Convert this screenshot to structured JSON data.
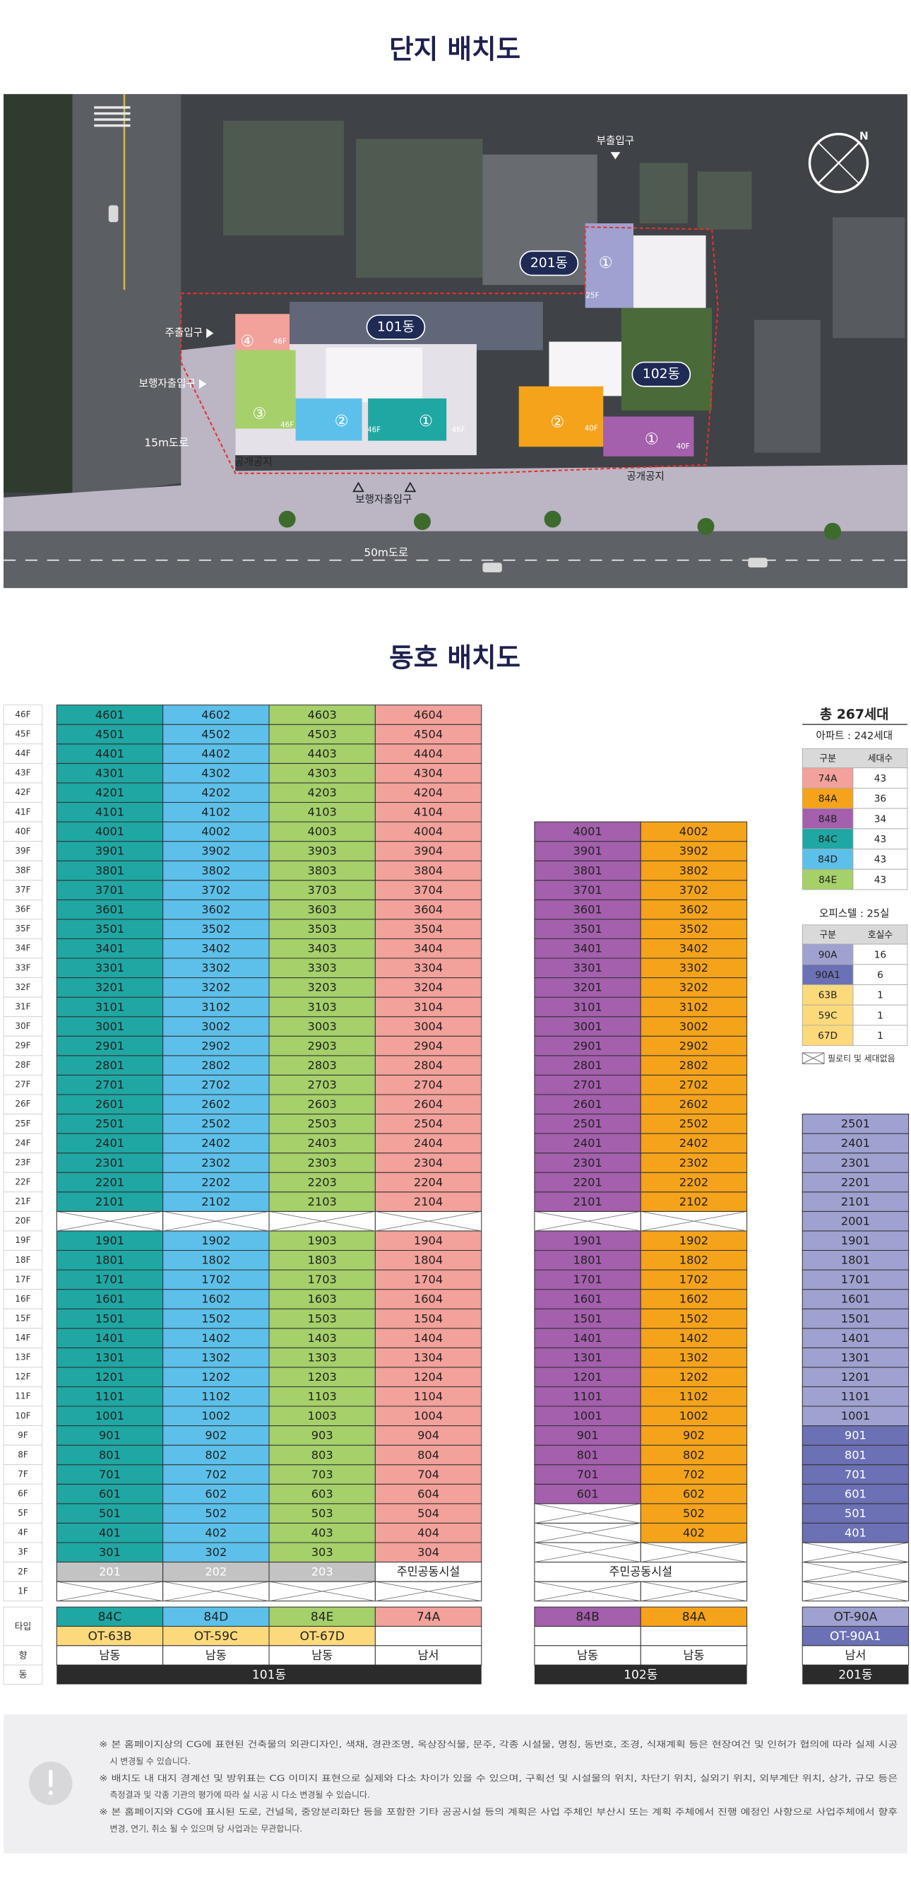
{
  "titles": {
    "site_plan": "단지 배치도",
    "unit_plan": "동호 배치도"
  },
  "map": {
    "entrances": [
      "부출입구",
      "주출입구",
      "보행자출입구",
      "보행자출입구"
    ],
    "buildings": [
      "201동",
      "101동",
      "102동"
    ],
    "roads": [
      "15m도로",
      "50m도로"
    ],
    "open_spaces": [
      "공개공지",
      "공개공지"
    ],
    "compass": "N",
    "units": [
      {
        "label": "④",
        "floors": "46F"
      },
      {
        "label": "③",
        "floors": "46F"
      },
      {
        "label": "②",
        "floors": "46F"
      },
      {
        "label": "①",
        "floors": "46F"
      },
      {
        "label": "②",
        "floors": "40F"
      },
      {
        "label": "①",
        "floors": "40F"
      },
      {
        "label": "①",
        "floors": "25F"
      }
    ]
  },
  "floors": [
    "46F",
    "45F",
    "44F",
    "43F",
    "42F",
    "41F",
    "40F",
    "39F",
    "38F",
    "37F",
    "36F",
    "35F",
    "34F",
    "33F",
    "32F",
    "31F",
    "30F",
    "29F",
    "28F",
    "27F",
    "26F",
    "25F",
    "24F",
    "23F",
    "22F",
    "21F",
    "20F",
    "19F",
    "18F",
    "17F",
    "16F",
    "15F",
    "14F",
    "13F",
    "12F",
    "11F",
    "10F",
    "9F",
    "8F",
    "7F",
    "6F",
    "5F",
    "4F",
    "3F",
    "2F",
    "1F"
  ],
  "row_labels": {
    "type": "타입",
    "direction": "향",
    "building": "동"
  },
  "buildings": [
    {
      "name": "101동",
      "columns": [
        {
          "type": "84C",
          "color": "#1fa7a3",
          "subtype": "OT-63B",
          "subtype_color": "#fcd97b",
          "direction": "남동"
        },
        {
          "type": "84D",
          "color": "#5cc0ea",
          "subtype": "OT-59C",
          "subtype_color": "#fcd97b",
          "direction": "남동"
        },
        {
          "type": "84E",
          "color": "#a5d06a",
          "subtype": "OT-67D",
          "subtype_color": "#fcd97b",
          "direction": "남동"
        },
        {
          "type": "74A",
          "color": "#f3a19b",
          "direction": "남서"
        }
      ],
      "rows": [
        [
          null,
          null,
          null,
          null
        ],
        [
          {
            "label": "201",
            "color": "#c3c3c3",
            "text_color": "#ffffff"
          },
          {
            "label": "202",
            "color": "#c3c3c3",
            "text_color": "#ffffff"
          },
          {
            "label": "203",
            "color": "#c3c3c3",
            "text_color": "#ffffff"
          },
          {
            "label": "주민공동시설",
            "color": "#ffffff"
          }
        ],
        [
          "301",
          "302",
          "303",
          "304"
        ],
        [
          "401",
          "402",
          "403",
          "404"
        ],
        [
          "501",
          "502",
          "503",
          "504"
        ],
        [
          "601",
          "602",
          "603",
          "604"
        ],
        [
          "701",
          "702",
          "703",
          "704"
        ],
        [
          "801",
          "802",
          "803",
          "804"
        ],
        [
          "901",
          "902",
          "903",
          "904"
        ],
        [
          "1001",
          "1002",
          "1003",
          "1004"
        ],
        [
          "1101",
          "1102",
          "1103",
          "1104"
        ],
        [
          "1201",
          "1202",
          "1203",
          "1204"
        ],
        [
          "1301",
          "1302",
          "1303",
          "1304"
        ],
        [
          "1401",
          "1402",
          "1403",
          "1404"
        ],
        [
          "1501",
          "1502",
          "1503",
          "1504"
        ],
        [
          "1601",
          "1602",
          "1603",
          "1604"
        ],
        [
          "1701",
          "1702",
          "1703",
          "1704"
        ],
        [
          "1801",
          "1802",
          "1803",
          "1804"
        ],
        [
          "1901",
          "1902",
          "1903",
          "1904"
        ],
        [
          null,
          null,
          null,
          null
        ],
        [
          "2101",
          "2102",
          "2103",
          "2104"
        ],
        [
          "2201",
          "2202",
          "2203",
          "2204"
        ],
        [
          "2301",
          "2302",
          "2303",
          "2304"
        ],
        [
          "2401",
          "2402",
          "2403",
          "2404"
        ],
        [
          "2501",
          "2502",
          "2503",
          "2504"
        ],
        [
          "2601",
          "2602",
          "2603",
          "2604"
        ],
        [
          "2701",
          "2702",
          "2703",
          "2704"
        ],
        [
          "2801",
          "2802",
          "2803",
          "2804"
        ],
        [
          "2901",
          "2902",
          "2903",
          "2904"
        ],
        [
          "3001",
          "3002",
          "3003",
          "3004"
        ],
        [
          "3101",
          "3102",
          "3103",
          "3104"
        ],
        [
          "3201",
          "3202",
          "3203",
          "3204"
        ],
        [
          "3301",
          "3302",
          "3303",
          "3304"
        ],
        [
          "3401",
          "3402",
          "3403",
          "3404"
        ],
        [
          "3501",
          "3502",
          "3503",
          "3504"
        ],
        [
          "3601",
          "3602",
          "3603",
          "3604"
        ],
        [
          "3701",
          "3702",
          "3703",
          "3704"
        ],
        [
          "3801",
          "3802",
          "3803",
          "3804"
        ],
        [
          "3901",
          "3902",
          "3903",
          "3904"
        ],
        [
          "4001",
          "4002",
          "4003",
          "4004"
        ],
        [
          "4101",
          "4102",
          "4103",
          "4104"
        ],
        [
          "4201",
          "4202",
          "4203",
          "4204"
        ],
        [
          "4301",
          "4302",
          "4303",
          "4304"
        ],
        [
          "4401",
          "4402",
          "4403",
          "4404"
        ],
        [
          "4501",
          "4502",
          "4503",
          "4504"
        ],
        [
          "4601",
          "4602",
          "4603",
          "4604"
        ]
      ]
    },
    {
      "name": "102동",
      "columns": [
        {
          "type": "84B",
          "color": "#a45fad",
          "direction": "남동"
        },
        {
          "type": "84A",
          "color": "#f5a31a",
          "direction": "남동"
        }
      ],
      "rows": [
        [
          null,
          null
        ],
        [
          {
            "label": "주민공동시설",
            "color": "#ffffff"
          }
        ],
        [
          null,
          null
        ],
        [
          null,
          "402"
        ],
        [
          null,
          "502"
        ],
        [
          "601",
          "602"
        ],
        [
          "701",
          "702"
        ],
        [
          "801",
          "802"
        ],
        [
          "901",
          "902"
        ],
        [
          "1001",
          "1002"
        ],
        [
          "1101",
          "1102"
        ],
        [
          "1201",
          "1202"
        ],
        [
          "1301",
          "1302"
        ],
        [
          "1401",
          "1402"
        ],
        [
          "1501",
          "1502"
        ],
        [
          "1601",
          "1602"
        ],
        [
          "1701",
          "1702"
        ],
        [
          "1801",
          "1802"
        ],
        [
          "1901",
          "1902"
        ],
        [
          null,
          null
        ],
        [
          "2101",
          "2102"
        ],
        [
          "2201",
          "2202"
        ],
        [
          "2301",
          "2302"
        ],
        [
          "2401",
          "2402"
        ],
        [
          "2501",
          "2502"
        ],
        [
          "2601",
          "2602"
        ],
        [
          "2701",
          "2702"
        ],
        [
          "2801",
          "2802"
        ],
        [
          "2901",
          "2902"
        ],
        [
          "3001",
          "3002"
        ],
        [
          "3101",
          "3102"
        ],
        [
          "3201",
          "3202"
        ],
        [
          "3301",
          "3302"
        ],
        [
          "3401",
          "3402"
        ],
        [
          "3501",
          "3502"
        ],
        [
          "3601",
          "3602"
        ],
        [
          "3701",
          "3702"
        ],
        [
          "3801",
          "3802"
        ],
        [
          "3901",
          "3902"
        ],
        [
          "4001",
          "4002"
        ]
      ]
    },
    {
      "name": "201동",
      "columns": [
        {
          "type": "OT-90A",
          "color": "#9fa1d0",
          "subtype": "OT-90A1",
          "subtype_color": "#6c70b4",
          "subtype_text_color": "#ffffff",
          "direction": "남서"
        }
      ],
      "rows": [
        [
          null
        ],
        [
          null
        ],
        [
          null
        ],
        [
          {
            "label": "401",
            "color": "#6c70b4",
            "text_color": "#ffffff"
          }
        ],
        [
          {
            "label": "501",
            "color": "#6c70b4",
            "text_color": "#ffffff"
          }
        ],
        [
          {
            "label": "601",
            "color": "#6c70b4",
            "text_color": "#ffffff"
          }
        ],
        [
          {
            "label": "701",
            "color": "#6c70b4",
            "text_color": "#ffffff"
          }
        ],
        [
          {
            "label": "801",
            "color": "#6c70b4",
            "text_color": "#ffffff"
          }
        ],
        [
          {
            "label": "901",
            "color": "#6c70b4",
            "text_color": "#ffffff"
          }
        ],
        [
          "1001"
        ],
        [
          "1101"
        ],
        [
          "1201"
        ],
        [
          "1301"
        ],
        [
          "1401"
        ],
        [
          "1501"
        ],
        [
          "1601"
        ],
        [
          "1701"
        ],
        [
          "1801"
        ],
        [
          "1901"
        ],
        [
          "2001"
        ],
        [
          "2101"
        ],
        [
          "2201"
        ],
        [
          "2301"
        ],
        [
          "2401"
        ],
        [
          "2501"
        ]
      ]
    }
  ],
  "summary": {
    "total": "총 267세대",
    "apartment": {
      "title": "아파트 : 242세대",
      "headers": [
        "구분",
        "세대수"
      ],
      "rows": [
        {
          "type": "74A",
          "count": 43,
          "color": "#f3a19b"
        },
        {
          "type": "84A",
          "count": 36,
          "color": "#f5a31a"
        },
        {
          "type": "84B",
          "count": 34,
          "color": "#a45fad"
        },
        {
          "type": "84C",
          "count": 43,
          "color": "#1fa7a3"
        },
        {
          "type": "84D",
          "count": 43,
          "color": "#5cc0ea"
        },
        {
          "type": "84E",
          "count": 43,
          "color": "#a5d06a"
        }
      ]
    },
    "officetel": {
      "title": "오피스텔 : 25실",
      "headers": [
        "구분",
        "호실수"
      ],
      "rows": [
        {
          "type": "90A",
          "count": 16,
          "color": "#9fa1d0"
        },
        {
          "type": "90A1",
          "count": 6,
          "color": "#6c70b4"
        },
        {
          "type": "63B",
          "count": 1,
          "color": "#fcd97b"
        },
        {
          "type": "59C",
          "count": 1,
          "color": "#fcd97b"
        },
        {
          "type": "67D",
          "count": 1,
          "color": "#fcd97b"
        }
      ]
    },
    "piloti": "필로티 및 세대없음"
  },
  "notes": [
    [
      "※ 본 홈페이지상의 CG에 표현된 건축물의 외관디자인, 색채, 경관조명, 옥상장식물, 문주, 각종 시설물, 명칭, 동번호, 조경, 식재계획 등은 현장여건 및 인허가 협의에 따라 실제 시공",
      "시 변경될 수 있습니다."
    ],
    [
      "※ 배치도 내 대지 경계선 및 방위표는 CG 이미지 표현으로 실제와 다소 차이가 있을 수 있으며, 구획선 및 시설물의 위치, 차단기 위치, 실외기 위치, 외부계단 위치, 상가, 규모 등은",
      "측정결과 및 각종 기관의 평가에 따라 실 시공 시 다소 변경될 수 있습니다."
    ],
    [
      "※ 본 홈페이지와 CG에 표시된 도로, 건널목, 중앙분리화단 등을 포함한 기타 공공시설 등의 계획은 사업 주체인 부산시 또는 계획 주체에서 진행 예정인 사항으로 사업주체에서 향후",
      "변경, 연기, 취소 될 수 있으며 당 사업과는 무관합니다."
    ]
  ]
}
